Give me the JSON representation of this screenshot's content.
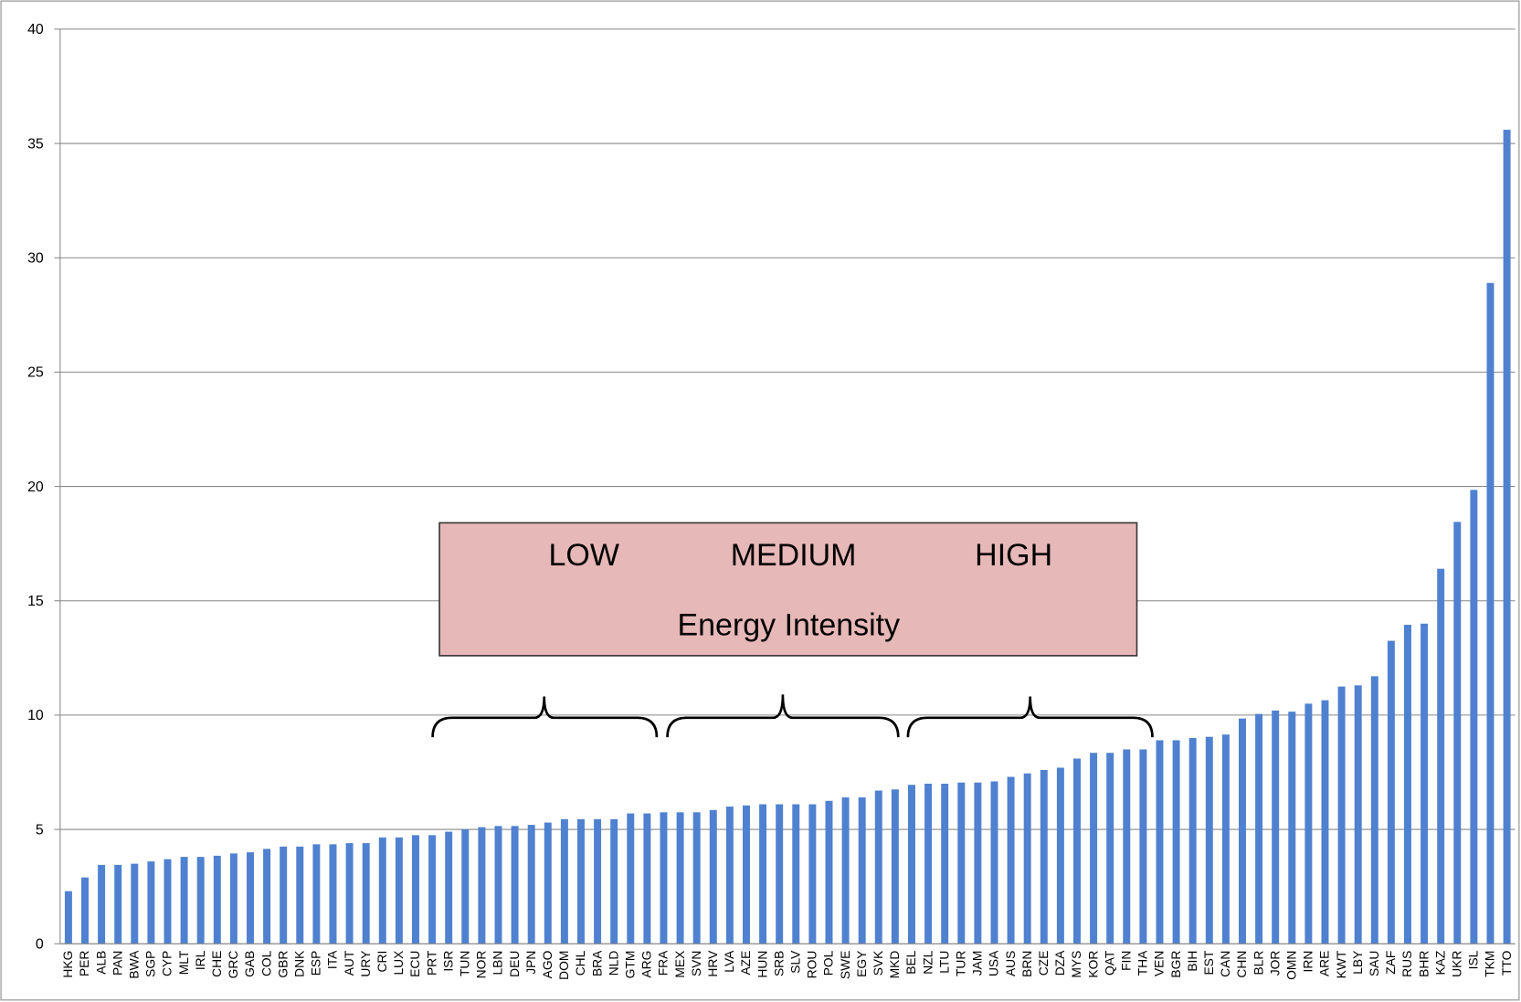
{
  "chart_data": {
    "type": "bar",
    "categories": [
      "HKG",
      "PER",
      "ALB",
      "PAN",
      "BWA",
      "SGP",
      "CYP",
      "MLT",
      "IRL",
      "CHE",
      "GRC",
      "GAB",
      "COL",
      "GBR",
      "DNK",
      "ESP",
      "ITA",
      "AUT",
      "URY",
      "CRI",
      "LUX",
      "ECU",
      "PRT",
      "ISR",
      "TUN",
      "NOR",
      "LBN",
      "DEU",
      "JPN",
      "AGO",
      "DOM",
      "CHL",
      "BRA",
      "NLD",
      "GTM",
      "ARG",
      "FRA",
      "MEX",
      "SVN",
      "HRV",
      "LVA",
      "AZE",
      "HUN",
      "SRB",
      "SLV",
      "ROU",
      "POL",
      "SWE",
      "EGY",
      "SVK",
      "MKD",
      "BEL",
      "NZL",
      "LTU",
      "TUR",
      "JAM",
      "USA",
      "AUS",
      "BRN",
      "CZE",
      "DZA",
      "MYS",
      "KOR",
      "QAT",
      "FIN",
      "THA",
      "VEN",
      "BGR",
      "BIH",
      "EST",
      "CAN",
      "CHN",
      "BLR",
      "JOR",
      "OMN",
      "IRN",
      "ARE",
      "KWT",
      "LBY",
      "SAU",
      "ZAF",
      "RUS",
      "BHR",
      "KAZ",
      "UKR",
      "ISL",
      "TKM",
      "TTO"
    ],
    "values": [
      2.3,
      2.9,
      3.45,
      3.45,
      3.5,
      3.6,
      3.7,
      3.8,
      3.8,
      3.85,
      3.95,
      4.0,
      4.15,
      4.25,
      4.25,
      4.35,
      4.35,
      4.4,
      4.4,
      4.65,
      4.65,
      4.75,
      4.75,
      4.9,
      5.0,
      5.1,
      5.15,
      5.15,
      5.2,
      5.3,
      5.45,
      5.45,
      5.45,
      5.45,
      5.7,
      5.7,
      5.75,
      5.75,
      5.75,
      5.85,
      6.0,
      6.05,
      6.1,
      6.1,
      6.1,
      6.1,
      6.25,
      6.4,
      6.4,
      6.7,
      6.75,
      6.95,
      7.0,
      7.0,
      7.05,
      7.05,
      7.1,
      7.3,
      7.45,
      7.6,
      7.7,
      8.1,
      8.35,
      8.35,
      8.5,
      8.5,
      8.9,
      8.9,
      9.0,
      9.05,
      9.15,
      9.85,
      10.05,
      10.2,
      10.15,
      10.5,
      10.65,
      11.25,
      11.3,
      11.7,
      13.25,
      13.95,
      14.0,
      16.4,
      18.45,
      19.85,
      28.9,
      35.6
    ],
    "color": "#4f81d0",
    "ylim": [
      0,
      40
    ],
    "yticks": [
      0,
      5,
      10,
      15,
      20,
      25,
      30,
      35,
      40
    ],
    "grid": true,
    "annotation": {
      "levels": [
        "LOW",
        "MEDIUM",
        "HIGH"
      ],
      "caption": "Energy Intensity"
    }
  }
}
